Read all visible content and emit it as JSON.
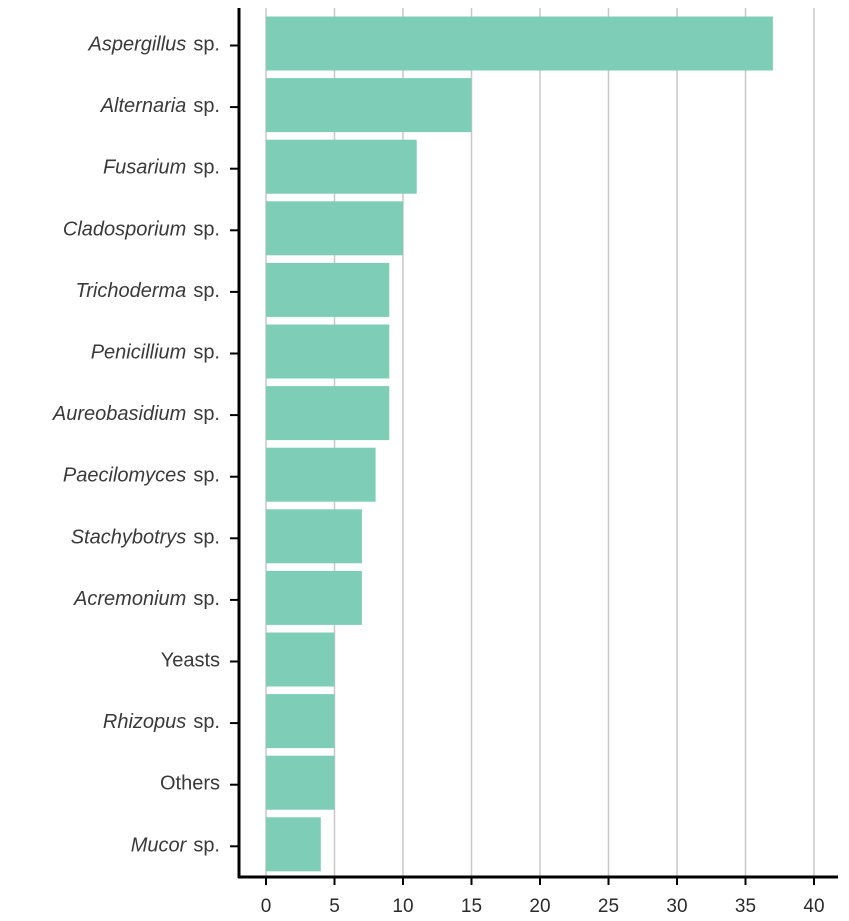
{
  "chart_data": {
    "type": "bar",
    "orientation": "horizontal",
    "categories": [
      {
        "genus": "Aspergillus",
        "suffix": "sp."
      },
      {
        "genus": "Alternaria",
        "suffix": "sp."
      },
      {
        "genus": "Fusarium",
        "suffix": "sp."
      },
      {
        "genus": "Cladosporium",
        "suffix": "sp."
      },
      {
        "genus": "Trichoderma",
        "suffix": "sp."
      },
      {
        "genus": "Penicillium",
        "suffix": "sp."
      },
      {
        "genus": "Aureobasidium",
        "suffix": "sp."
      },
      {
        "genus": "Paecilomyces",
        "suffix": "sp."
      },
      {
        "genus": "Stachybotrys",
        "suffix": "sp."
      },
      {
        "genus": "Acremonium",
        "suffix": "sp."
      },
      {
        "genus": "",
        "suffix": "Yeasts"
      },
      {
        "genus": "Rhizopus",
        "suffix": "sp."
      },
      {
        "genus": "",
        "suffix": "Others"
      },
      {
        "genus": "Mucor",
        "suffix": "sp."
      }
    ],
    "values": [
      37,
      15,
      11,
      10,
      9,
      9,
      9,
      8,
      7,
      7,
      5,
      5,
      5,
      4
    ],
    "xlim": [
      0,
      40
    ],
    "xticks": [
      "0",
      "5",
      "10",
      "15",
      "20",
      "25",
      "30",
      "35",
      "40"
    ],
    "grid": "vertical",
    "bar_color": "#7ecdb6",
    "gridline_color": "#c8c8c8",
    "axis_color": "#000000",
    "title": "",
    "xlabel": "",
    "ylabel": ""
  }
}
